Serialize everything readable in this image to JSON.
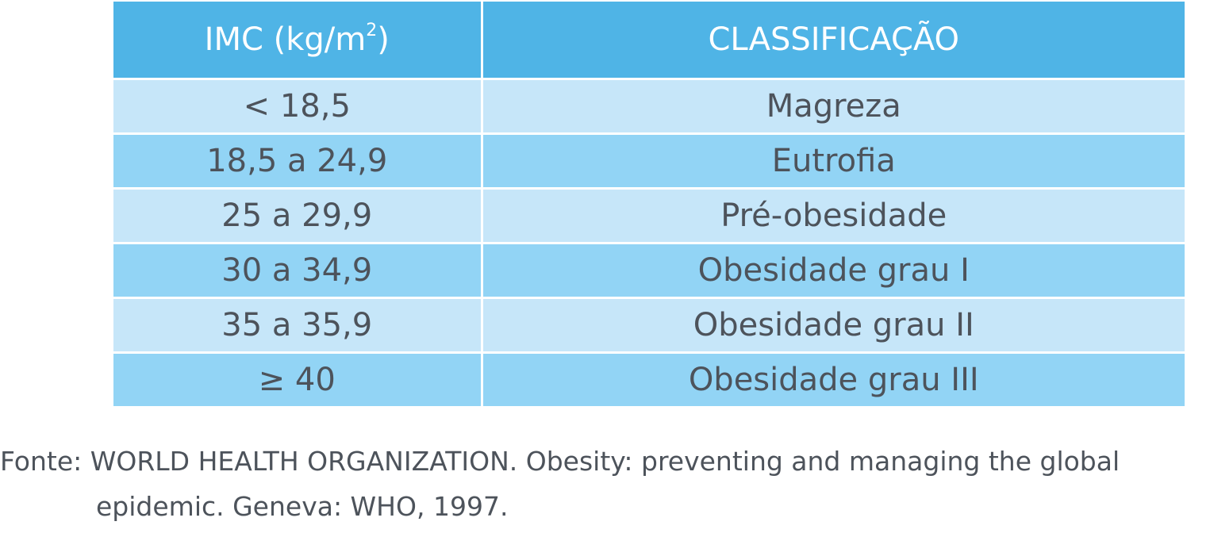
{
  "table": {
    "headers": {
      "imc": "IMC (kg/m",
      "imc_sup": "2",
      "imc_close": ")",
      "classification": "CLASSIFICAÇÃO"
    },
    "rows": [
      {
        "imc": "< 18,5",
        "classification": "Magreza"
      },
      {
        "imc": "18,5 a 24,9",
        "classification": "Eutrofia"
      },
      {
        "imc": "25 a 29,9",
        "classification": "Pré-obesidade"
      },
      {
        "imc": "30 a 34,9",
        "classification": "Obesidade grau I"
      },
      {
        "imc": "35 a 35,9",
        "classification": "Obesidade grau II"
      },
      {
        "imc": "≥ 40",
        "classification": "Obesidade grau III"
      }
    ]
  },
  "source": {
    "line1": "Fonte: WORLD HEALTH ORGANIZATION. Obesity: preventing and managing the global",
    "line2": "epidemic. Geneva: WHO, 1997."
  },
  "colors": {
    "header_bg": "#4fb4e6",
    "row_light": "#c6e6f9",
    "row_dark": "#92d4f5",
    "text": "#4d535b"
  }
}
